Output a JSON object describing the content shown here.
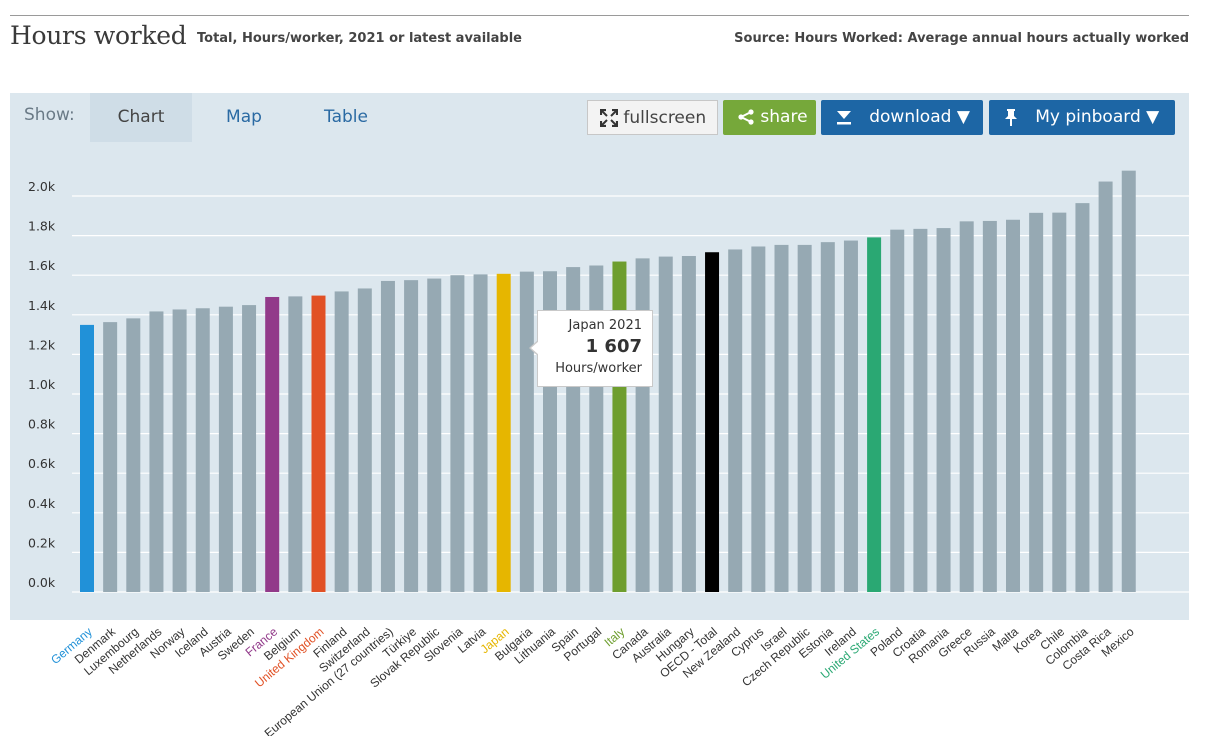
{
  "header": {
    "title": "Hours worked",
    "subtitle": "Total, Hours/worker, 2021 or latest available",
    "source": "Source: Hours Worked: Average annual hours actually worked"
  },
  "toolbar": {
    "show_label": "Show:",
    "tabs": [
      "Chart",
      "Map",
      "Table"
    ],
    "fullscreen_label": "fullscreen",
    "share_label": "share",
    "download_label": "download ▼",
    "pinboard_label": "My pinboard ▼"
  },
  "tooltip": {
    "line1": "Japan 2021",
    "value": "1 607",
    "unit": "Hours/worker"
  },
  "colors": {
    "default_bar": "#96a9b3",
    "Germany": "#2191d8",
    "France": "#923a8a",
    "United Kingdom": "#e15125",
    "Japan": "#e6b600",
    "Italy": "#6e9e2e",
    "OECD - Total": "#000000",
    "United States": "#2aa873",
    "grid": "#ffffff",
    "plot_bg": "#dce7ee"
  },
  "chart_data": {
    "type": "bar",
    "title": "Hours worked",
    "ylabel": "Hours/worker",
    "ylim": [
      0,
      2200
    ],
    "yticks": [
      0,
      200,
      400,
      600,
      800,
      1000,
      1200,
      1400,
      1600,
      1800,
      2000
    ],
    "ytick_labels": [
      "0.0k",
      "0.2k",
      "0.4k",
      "0.6k",
      "0.8k",
      "1.0k",
      "1.2k",
      "1.4k",
      "1.6k",
      "1.8k",
      "2.0k"
    ],
    "categories": [
      "Germany",
      "Denmark",
      "Luxembourg",
      "Netherlands",
      "Norway",
      "Iceland",
      "Austria",
      "Sweden",
      "France",
      "Belgium",
      "United Kingdom",
      "Finland",
      "Switzerland",
      "European Union (27 countries)",
      "Türkiye",
      "Slovak Republic",
      "Slovenia",
      "Latvia",
      "Japan",
      "Bulgaria",
      "Lithuania",
      "Spain",
      "Portugal",
      "Italy",
      "Canada",
      "Australia",
      "Hungary",
      "OECD - Total",
      "New Zealand",
      "Cyprus",
      "Israel",
      "Czech Republic",
      "Estonia",
      "Ireland",
      "United States",
      "Poland",
      "Croatia",
      "Romania",
      "Greece",
      "Russia",
      "Malta",
      "Korea",
      "Chile",
      "Colombia",
      "Costa Rica",
      "Mexico"
    ],
    "values": [
      1349,
      1363,
      1382,
      1417,
      1427,
      1433,
      1441,
      1449,
      1490,
      1493,
      1497,
      1518,
      1533,
      1571,
      1575,
      1583,
      1600,
      1604,
      1607,
      1618,
      1620,
      1641,
      1649,
      1669,
      1685,
      1694,
      1697,
      1716,
      1730,
      1745,
      1753,
      1753,
      1767,
      1775,
      1791,
      1830,
      1834,
      1838,
      1872,
      1874,
      1880,
      1915,
      1916,
      1964,
      2073,
      2128
    ],
    "highlighted_labels": [
      "Germany",
      "France",
      "United Kingdom",
      "Japan",
      "Italy",
      "United States"
    ]
  }
}
